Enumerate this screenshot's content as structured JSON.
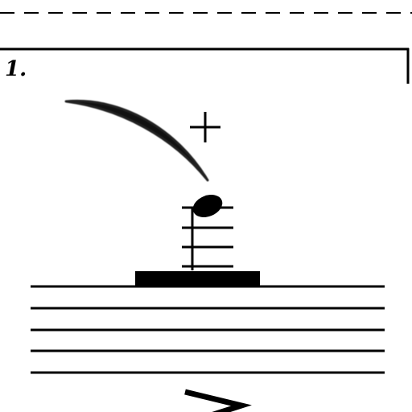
{
  "score": {
    "ending_bracket": {
      "number": "1."
    },
    "notation": {
      "clef": null,
      "note": {
        "head": "filled",
        "ledger_lines_above_staff": 4,
        "dynamic_accent": "accent"
      },
      "ornaments": [
        "slur",
        "left-hand-pizzicato"
      ],
      "rest": "whole-rest-on-staff"
    },
    "colors": {
      "ink": "#000000",
      "paper": "#ffffff"
    }
  }
}
